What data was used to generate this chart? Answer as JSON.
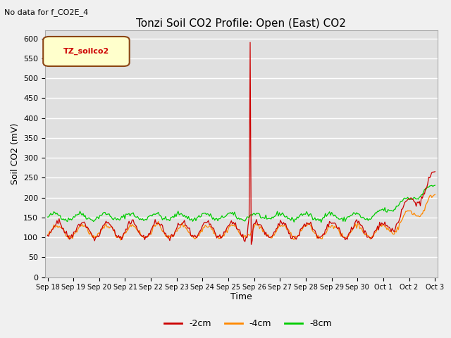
{
  "title": "Tonzi Soil CO2 Profile: Open (East) CO2",
  "subtitle": "No data for f_CO2E_4",
  "ylabel": "Soil CO2 (mV)",
  "xlabel": "Time",
  "legend_label": "TZ_soilco2",
  "series_labels": [
    "-2cm",
    "-4cm",
    "-8cm"
  ],
  "series_colors": [
    "#cc0000",
    "#ff8800",
    "#00cc00"
  ],
  "ylim": [
    0,
    620
  ],
  "yticks": [
    0,
    50,
    100,
    150,
    200,
    250,
    300,
    350,
    400,
    450,
    500,
    550,
    600
  ],
  "bg_color": "#e0e0e0",
  "fig_bg_color": "#f0f0f0",
  "tick_labels": [
    "Sep 18",
    "Sep 19",
    "Sep 20",
    "Sep 21",
    "Sep 22",
    "Sep 23",
    "Sep 24",
    "Sep 25",
    "Sep 26",
    "Sep 27",
    "Sep 28",
    "Sep 29",
    "Sep 30",
    "Oct 1",
    "Oct 2",
    "Oct 3"
  ],
  "title_fontsize": 11,
  "subtitle_fontsize": 8,
  "ylabel_fontsize": 9,
  "xlabel_fontsize": 9,
  "tick_fontsize": 7,
  "legend_inner_fontsize": 8,
  "legend_outer_fontsize": 9
}
